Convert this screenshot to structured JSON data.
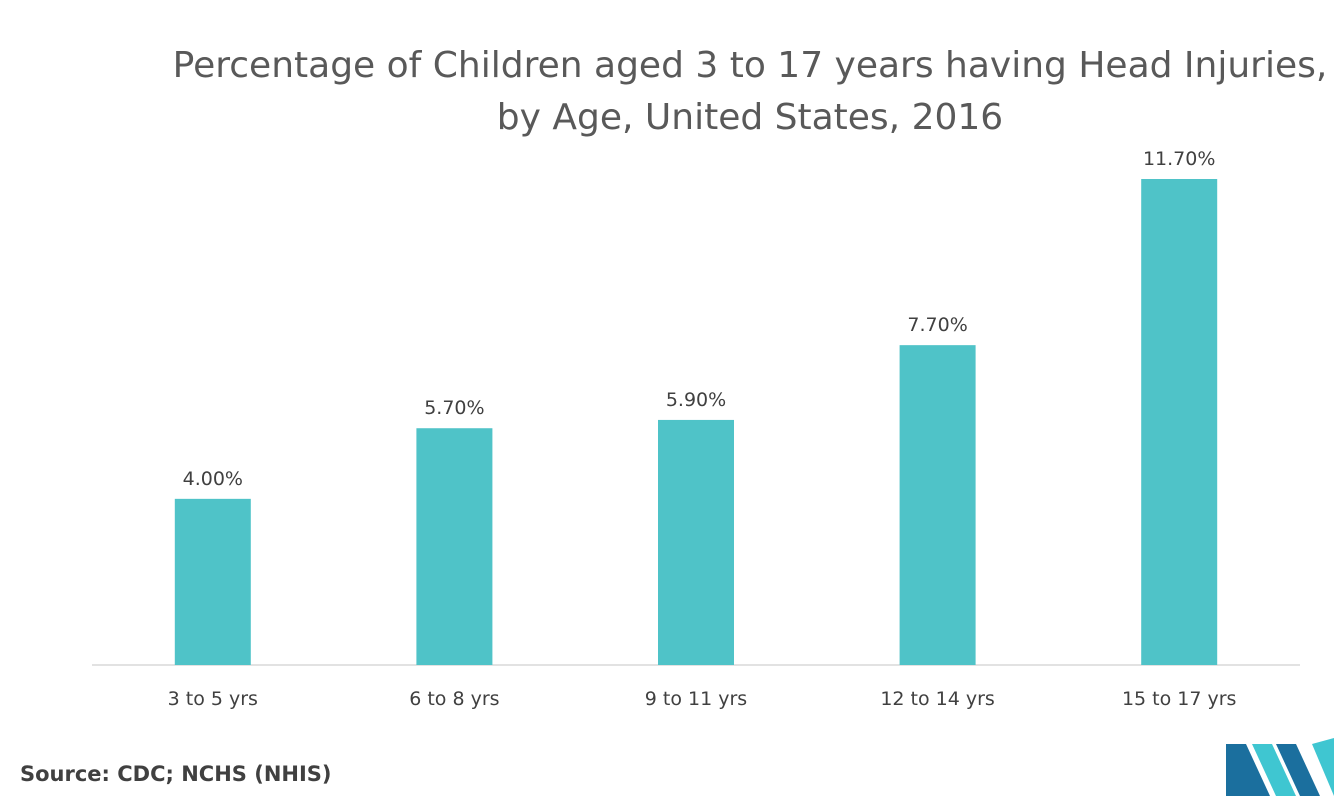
{
  "chart_data": {
    "type": "bar",
    "title": "Percentage of Children aged 3 to 17 years having Head Injuries, by Age, United States, 2016",
    "categories": [
      "3 to 5 yrs",
      "6 to 8 yrs",
      "9 to 11 yrs",
      "12 to 14 yrs",
      "15 to 17 yrs"
    ],
    "values": [
      4.0,
      5.7,
      5.9,
      7.7,
      11.7
    ],
    "data_labels": [
      "4.00%",
      "5.70%",
      "5.90%",
      "7.70%",
      "11.70%"
    ],
    "ylim": [
      0,
      11.7
    ],
    "grid": false,
    "legend": "none"
  },
  "colors": {
    "bar": "#4fc3c8",
    "axis": "#d9d9d9",
    "label": "#404040",
    "logo_dark": "#1b6f9e",
    "logo_light": "#3fc6d1"
  },
  "source": "Source: CDC; NCHS (NHIS)"
}
